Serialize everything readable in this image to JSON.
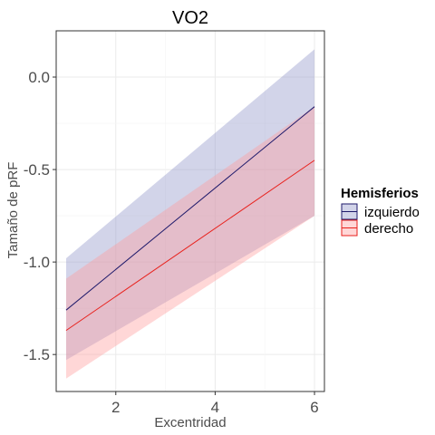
{
  "chart_data": {
    "type": "line",
    "title": "VO2",
    "xlabel": "Excentridad",
    "ylabel": "Tamaño de pRF",
    "xlim": [
      0.8,
      6.2
    ],
    "ylim": [
      -1.7,
      0.25
    ],
    "x_ticks": [
      2,
      4,
      6
    ],
    "x_tick_labels": [
      "2",
      "4",
      "6"
    ],
    "y_ticks": [
      0.0,
      -0.5,
      -1.0,
      -1.5
    ],
    "y_tick_labels": [
      "0.0",
      "-0.5",
      "-1.0",
      "-1.5"
    ],
    "grid": true,
    "legend": {
      "title": "Hemisferios",
      "position": "right"
    },
    "series": [
      {
        "name": "izquierdo",
        "line_color": "#1f1a6b",
        "fill_color": "#8f93c8",
        "x": [
          1,
          6
        ],
        "y": [
          -1.26,
          -0.16
        ],
        "lower": [
          -1.53,
          -0.75
        ],
        "upper": [
          -0.98,
          0.15
        ]
      },
      {
        "name": "derecho",
        "line_color": "#e8211c",
        "fill_color": "#ff9c9c",
        "x": [
          1,
          6
        ],
        "y": [
          -1.37,
          -0.45
        ],
        "lower": [
          -1.63,
          -0.75
        ],
        "upper": [
          -1.09,
          -0.16
        ]
      }
    ]
  }
}
